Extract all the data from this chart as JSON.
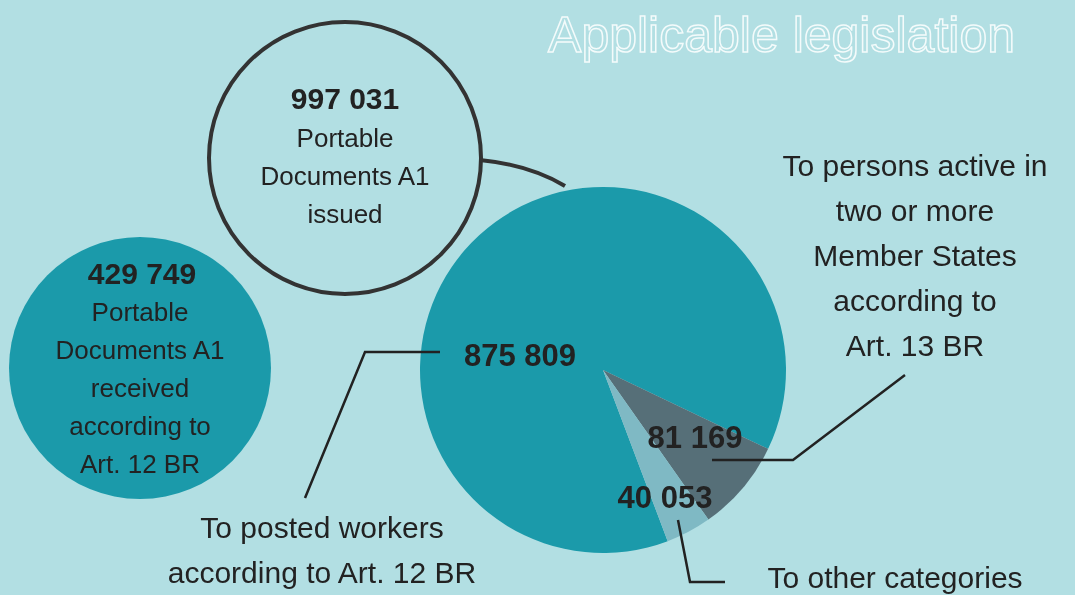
{
  "chart_data": {
    "type": "pie",
    "title": "Applicable legislation",
    "categories": [
      "To posted workers according to Art. 12 BR",
      "To persons active in two or more Member States according to Art. 13 BR",
      "To other categories"
    ],
    "values": [
      875809,
      81169,
      40053
    ],
    "colors": [
      "#1b9aaa",
      "#566f78",
      "#7fb9c4"
    ],
    "value_labels": [
      "875 809",
      "81 169",
      "40 053"
    ],
    "annotations": [
      "997 031",
      "Portable Documents A1 issued",
      "429 749",
      "Portable Documents A1 received according to Art. 12 BR"
    ]
  }
}
